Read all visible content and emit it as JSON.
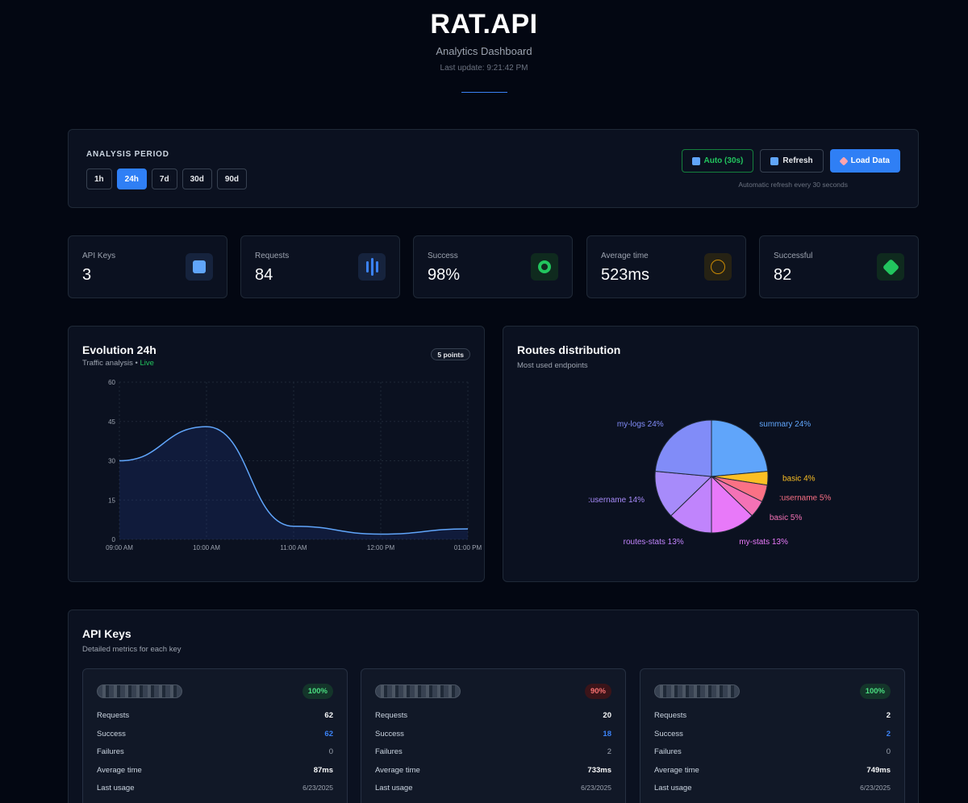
{
  "header": {
    "title": "RAT.API",
    "subtitle": "Analytics Dashboard",
    "last_update": "Last update: 9:21:42 PM"
  },
  "period": {
    "label": "ANALYSIS PERIOD",
    "options": [
      "1h",
      "24h",
      "7d",
      "30d",
      "90d"
    ],
    "active": "24h"
  },
  "actions": {
    "auto_label": "Auto (30s)",
    "refresh_label": "Refresh",
    "load_label": "Load Data",
    "note": "Automatic refresh every 30 seconds"
  },
  "stats": [
    {
      "label": "API Keys",
      "value": "3",
      "icon": "square-icon",
      "color": "#60a5fa"
    },
    {
      "label": "Requests",
      "value": "84",
      "icon": "bars-icon",
      "color": "#3b82f6"
    },
    {
      "label": "Success",
      "value": "98%",
      "icon": "target-icon",
      "color": "#22c55e"
    },
    {
      "label": "Average time",
      "value": "523ms",
      "icon": "circle-icon",
      "color": "#ca8a04"
    },
    {
      "label": "Successful",
      "value": "82",
      "icon": "diamond-icon",
      "color": "#22c55e"
    }
  ],
  "evolution": {
    "title": "Evolution 24h",
    "subtitle": "Traffic analysis • ",
    "live": "Live",
    "badge": "5 points"
  },
  "routes": {
    "title": "Routes distribution",
    "subtitle": "Most used endpoints"
  },
  "chart_data": [
    {
      "type": "area",
      "title": "Evolution 24h",
      "x": [
        "09:00 AM",
        "10:00 AM",
        "11:00 AM",
        "12:00 PM",
        "01:00 PM"
      ],
      "values": [
        30,
        43,
        5,
        2,
        4
      ],
      "ylim": [
        0,
        60
      ],
      "yticks": [
        0,
        15,
        30,
        45,
        60
      ],
      "xlabel": "",
      "ylabel": "",
      "color": "#60a5fa"
    },
    {
      "type": "pie",
      "title": "Routes distribution",
      "slices": [
        {
          "label": "summary 24%",
          "value": 24,
          "color": "#60a5fa"
        },
        {
          "label": "basic 4%",
          "value": 4,
          "color": "#fbbf24"
        },
        {
          "label": ":username 5%",
          "value": 5,
          "color": "#fb7185"
        },
        {
          "label": "basic 5%",
          "value": 5,
          "color": "#f472b6"
        },
        {
          "label": "my-stats 13%",
          "value": 13,
          "color": "#e879f9"
        },
        {
          "label": "routes-stats 13%",
          "value": 13,
          "color": "#c084fc"
        },
        {
          "label": ":username 14%",
          "value": 14,
          "color": "#a78bfa"
        },
        {
          "label": "my-logs 24%",
          "value": 24,
          "color": "#818cf8"
        }
      ]
    }
  ],
  "api_keys": {
    "title": "API Keys",
    "subtitle": "Detailed metrics for each key",
    "row_labels": [
      "Requests",
      "Success",
      "Failures",
      "Average time",
      "Last usage"
    ],
    "items": [
      {
        "rate": "100%",
        "status": "ok",
        "requests": "62",
        "success": "62",
        "failures": "0",
        "avg_time": "87ms",
        "last_usage": "6/23/2025"
      },
      {
        "rate": "90%",
        "status": "warn",
        "requests": "20",
        "success": "18",
        "failures": "2",
        "avg_time": "733ms",
        "last_usage": "6/23/2025"
      },
      {
        "rate": "100%",
        "status": "ok",
        "requests": "2",
        "success": "2",
        "failures": "0",
        "avg_time": "749ms",
        "last_usage": "6/23/2025"
      }
    ]
  }
}
